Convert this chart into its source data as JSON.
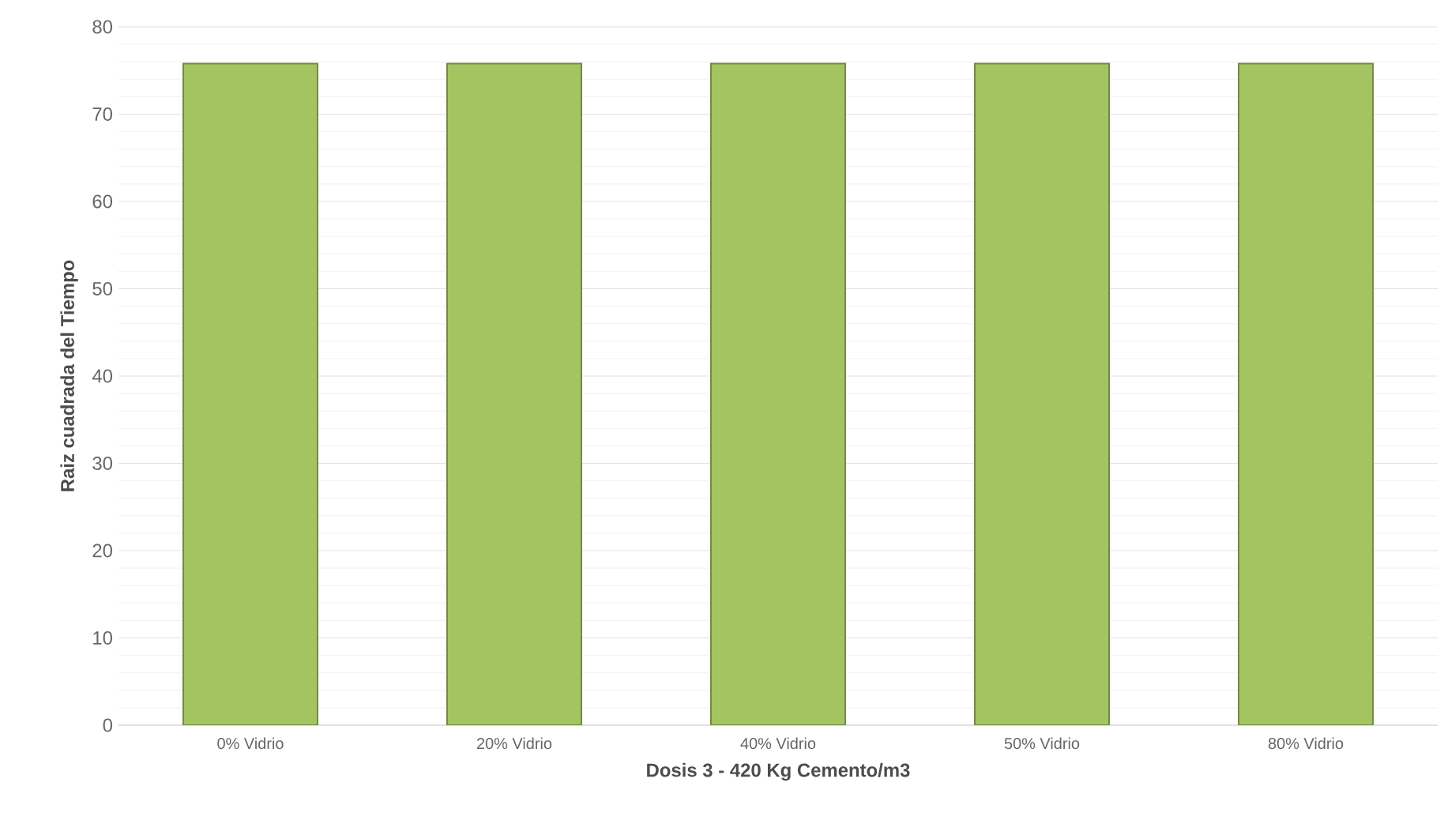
{
  "chart_data": {
    "type": "bar",
    "xlabel": "Dosis 3 - 420 Kg Cemento/m3",
    "ylabel": "Raiz cuadrada del Tiempo",
    "categories": [
      "0% Vidrio",
      "20% Vidrio",
      "40% Vidrio",
      "50% Vidrio",
      "80% Vidrio"
    ],
    "values": [
      75.8,
      75.8,
      75.8,
      75.8,
      75.8
    ],
    "color": "#a4c462",
    "ylim": [
      0,
      80
    ],
    "yticks": [
      0,
      10,
      20,
      30,
      40,
      50,
      60,
      70,
      80
    ],
    "grid": "y"
  }
}
